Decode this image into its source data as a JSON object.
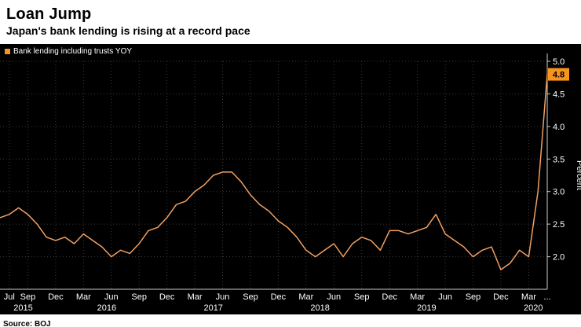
{
  "header": {
    "title": "Loan Jump",
    "subtitle": "Japan's bank lending is rising at a record pace"
  },
  "legend": {
    "label": "Bank lending including trusts YOY"
  },
  "footer": {
    "source": "Source: BOJ"
  },
  "colors": {
    "background": "#000000",
    "header_background": "#ffffff",
    "accent": "#F7941E",
    "line": "#F0A064",
    "grid": "#3d3d3d",
    "axis": "#cccccc",
    "text": "#ffffff",
    "badge_text": "#000000"
  },
  "chart_data": {
    "type": "line",
    "title": "Loan Jump",
    "subtitle": "Japan's bank lending is rising at a record pace",
    "ylabel": "Percent",
    "xlabel": "",
    "x_start": "Jun 2015",
    "x_end": "May 2020",
    "frequency": "monthly",
    "ylim": [
      1.5,
      5.0
    ],
    "yticks": [
      5.0,
      4.5,
      4.0,
      3.5,
      3.0,
      2.5,
      2.0
    ],
    "grid": "dotted",
    "legend_position": "top-left",
    "last_value_label": "4.8",
    "series": [
      {
        "name": "Bank lending including trusts YOY",
        "values": [
          2.6,
          2.65,
          2.75,
          2.65,
          2.5,
          2.3,
          2.25,
          2.3,
          2.2,
          2.35,
          2.25,
          2.15,
          2.0,
          2.1,
          2.05,
          2.2,
          2.4,
          2.45,
          2.6,
          2.8,
          2.85,
          3.0,
          3.1,
          3.25,
          3.3,
          3.3,
          3.15,
          2.95,
          2.8,
          2.7,
          2.55,
          2.45,
          2.3,
          2.1,
          2.0,
          2.1,
          2.2,
          2.0,
          2.2,
          2.3,
          2.25,
          2.1,
          2.4,
          2.4,
          2.35,
          2.4,
          2.45,
          2.65,
          2.35,
          2.25,
          2.15,
          2.0,
          2.1,
          2.15,
          1.8,
          1.9,
          2.1,
          2.0,
          3.0,
          4.8
        ]
      }
    ],
    "xticks": [
      {
        "label": "Jul",
        "i": 1
      },
      {
        "label": "Sep",
        "i": 3
      },
      {
        "label": "Dec",
        "i": 6
      },
      {
        "label": "Mar",
        "i": 9
      },
      {
        "label": "Jun",
        "i": 12
      },
      {
        "label": "Sep",
        "i": 15
      },
      {
        "label": "Dec",
        "i": 18
      },
      {
        "label": "Mar",
        "i": 21
      },
      {
        "label": "Jun",
        "i": 24
      },
      {
        "label": "Sep",
        "i": 27
      },
      {
        "label": "Dec",
        "i": 30
      },
      {
        "label": "Mar",
        "i": 33
      },
      {
        "label": "Jun",
        "i": 36
      },
      {
        "label": "Sep",
        "i": 39
      },
      {
        "label": "Dec",
        "i": 42
      },
      {
        "label": "Mar",
        "i": 45
      },
      {
        "label": "Jun",
        "i": 48
      },
      {
        "label": "Sep",
        "i": 51
      },
      {
        "label": "Dec",
        "i": 54
      },
      {
        "label": "Mar",
        "i": 57
      },
      {
        "label": "...",
        "i": 59
      }
    ],
    "year_ticks": [
      {
        "label": "2015",
        "i": 2.5
      },
      {
        "label": "2016",
        "i": 11.5
      },
      {
        "label": "2017",
        "i": 23
      },
      {
        "label": "2018",
        "i": 34.5
      },
      {
        "label": "2019",
        "i": 46
      },
      {
        "label": "2020",
        "i": 57.5
      }
    ]
  }
}
